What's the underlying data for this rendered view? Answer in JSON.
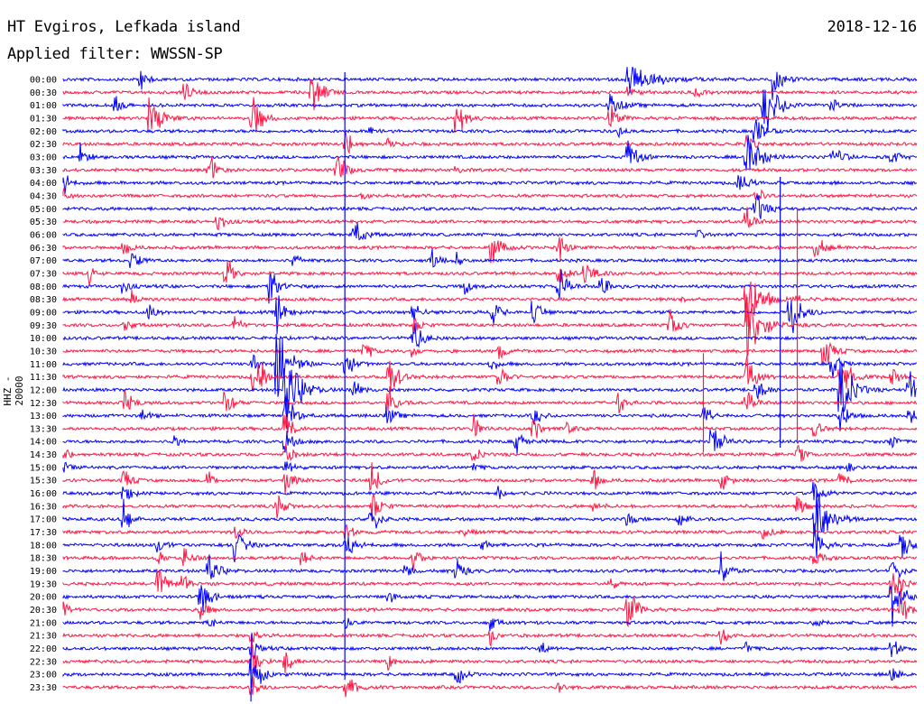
{
  "header": {
    "station": "HT Evgiros, Lefkada island",
    "date": "2018-12-16",
    "filter": "Applied filter: WWSSN-SP"
  },
  "chart_data": {
    "type": "line",
    "title": "HT Evgiros, Lefkada island",
    "ylabel": "HHZ - 20000",
    "colors": [
      "#0000ff",
      "#ff1744"
    ],
    "row_minutes": 30,
    "grid": false,
    "time_labels": [
      "00:00",
      "00:30",
      "01:00",
      "01:30",
      "02:00",
      "02:30",
      "03:00",
      "03:30",
      "04:00",
      "04:30",
      "05:00",
      "05:30",
      "06:00",
      "06:30",
      "07:00",
      "07:30",
      "08:00",
      "08:30",
      "09:00",
      "09:30",
      "10:00",
      "10:30",
      "11:00",
      "11:30",
      "12:00",
      "12:30",
      "13:00",
      "13:30",
      "14:00",
      "14:30",
      "15:00",
      "15:30",
      "16:00",
      "16:30",
      "17:00",
      "17:30",
      "18:00",
      "18:30",
      "19:00",
      "19:30",
      "20:00",
      "20:30",
      "21:00",
      "21:30",
      "22:00",
      "22:30",
      "23:00",
      "23:30"
    ],
    "events": [
      [
        0,
        0.09,
        18,
        18,
        6
      ],
      [
        0,
        0.66,
        22,
        14,
        24
      ],
      [
        0,
        0.83,
        30,
        14,
        8
      ],
      [
        1,
        0.29,
        35,
        18,
        9
      ],
      [
        1,
        0.14,
        17,
        9,
        7
      ],
      [
        1,
        0.66,
        8,
        9,
        9
      ],
      [
        1,
        0.74,
        12,
        9,
        5
      ],
      [
        2,
        0.06,
        15,
        8,
        6
      ],
      [
        2,
        0.64,
        16,
        16,
        10
      ],
      [
        2,
        0.82,
        45,
        20,
        12
      ],
      [
        2,
        0.9,
        14,
        10,
        6
      ],
      [
        3,
        0.1,
        40,
        18,
        10
      ],
      [
        3,
        0.22,
        45,
        20,
        8
      ],
      [
        3,
        0.46,
        40,
        16,
        7
      ],
      [
        3,
        0.64,
        22,
        10,
        7
      ],
      [
        4,
        0.36,
        10,
        8,
        4
      ],
      [
        4,
        0.65,
        10,
        8,
        4
      ],
      [
        4,
        0.81,
        22,
        18,
        9
      ],
      [
        5,
        0.33,
        30,
        18,
        6
      ],
      [
        5,
        0.38,
        10,
        8,
        4
      ],
      [
        5,
        0.8,
        12,
        9,
        6
      ],
      [
        6,
        0.02,
        18,
        12,
        6
      ],
      [
        6,
        0.66,
        30,
        18,
        8
      ],
      [
        6,
        0.8,
        48,
        20,
        10
      ],
      [
        6,
        0.9,
        25,
        14,
        7
      ],
      [
        6,
        0.97,
        12,
        8,
        7
      ],
      [
        7,
        0.17,
        30,
        14,
        6
      ],
      [
        7,
        0.32,
        28,
        16,
        8
      ],
      [
        7,
        0.46,
        10,
        8,
        4
      ],
      [
        8,
        0.0,
        25,
        10,
        5
      ],
      [
        8,
        0.79,
        18,
        14,
        8
      ],
      [
        9,
        0.0,
        18,
        10,
        5
      ],
      [
        9,
        0.35,
        10,
        8,
        4
      ],
      [
        9,
        0.81,
        20,
        12,
        6
      ],
      [
        10,
        0.81,
        28,
        18,
        8
      ],
      [
        11,
        0.18,
        18,
        10,
        6
      ],
      [
        11,
        0.8,
        22,
        14,
        7
      ],
      [
        12,
        0.34,
        25,
        14,
        8
      ],
      [
        12,
        0.74,
        12,
        10,
        6
      ],
      [
        13,
        0.07,
        15,
        10,
        6
      ],
      [
        13,
        0.5,
        38,
        18,
        7
      ],
      [
        13,
        0.58,
        24,
        14,
        6
      ],
      [
        13,
        0.88,
        22,
        14,
        8
      ],
      [
        14,
        0.08,
        20,
        12,
        6
      ],
      [
        14,
        0.27,
        12,
        10,
        5
      ],
      [
        14,
        0.43,
        18,
        12,
        6
      ],
      [
        14,
        0.46,
        12,
        10,
        5
      ],
      [
        15,
        0.03,
        15,
        10,
        4
      ],
      [
        15,
        0.19,
        30,
        14,
        6
      ],
      [
        15,
        0.58,
        22,
        12,
        6
      ],
      [
        15,
        0.61,
        18,
        10,
        8
      ],
      [
        16,
        0.07,
        15,
        10,
        5
      ],
      [
        16,
        0.24,
        40,
        16,
        7
      ],
      [
        16,
        0.47,
        15,
        12,
        6
      ],
      [
        16,
        0.58,
        28,
        16,
        8
      ],
      [
        16,
        0.63,
        18,
        12,
        7
      ],
      [
        17,
        0.08,
        14,
        10,
        5
      ],
      [
        17,
        0.72,
        10,
        8,
        4
      ],
      [
        17,
        0.8,
        60,
        40,
        12
      ],
      [
        17,
        0.86,
        10,
        8,
        4
      ],
      [
        18,
        0.1,
        18,
        10,
        5
      ],
      [
        18,
        0.25,
        30,
        14,
        7
      ],
      [
        18,
        0.41,
        20,
        12,
        6
      ],
      [
        18,
        0.5,
        28,
        16,
        6
      ],
      [
        18,
        0.55,
        25,
        14,
        6
      ],
      [
        18,
        0.85,
        45,
        20,
        10
      ],
      [
        19,
        0.07,
        14,
        10,
        6
      ],
      [
        19,
        0.2,
        14,
        12,
        6
      ],
      [
        19,
        0.41,
        14,
        10,
        6
      ],
      [
        19,
        0.71,
        25,
        14,
        7
      ],
      [
        19,
        0.8,
        60,
        20,
        12
      ],
      [
        20,
        0.41,
        22,
        14,
        8
      ],
      [
        21,
        0.35,
        24,
        14,
        6
      ],
      [
        21,
        0.41,
        12,
        8,
        4
      ],
      [
        21,
        0.51,
        20,
        12,
        5
      ],
      [
        21,
        0.89,
        28,
        14,
        8
      ],
      [
        22,
        0.22,
        22,
        14,
        6
      ],
      [
        22,
        0.25,
        70,
        30,
        10
      ],
      [
        22,
        0.33,
        28,
        14,
        6
      ],
      [
        22,
        0.5,
        16,
        10,
        5
      ],
      [
        22,
        0.9,
        22,
        12,
        6
      ],
      [
        23,
        0.22,
        30,
        16,
        6
      ],
      [
        23,
        0.23,
        24,
        12,
        6
      ],
      [
        23,
        0.38,
        40,
        20,
        8
      ],
      [
        23,
        0.51,
        22,
        14,
        6
      ],
      [
        23,
        0.8,
        30,
        14,
        8
      ],
      [
        23,
        0.91,
        45,
        22,
        8
      ],
      [
        23,
        0.97,
        16,
        10,
        6
      ],
      [
        24,
        0.26,
        70,
        40,
        12
      ],
      [
        24,
        0.34,
        18,
        10,
        6
      ],
      [
        24,
        0.81,
        25,
        12,
        7
      ],
      [
        24,
        0.91,
        55,
        40,
        10
      ],
      [
        24,
        0.99,
        30,
        18,
        8
      ],
      [
        25,
        0.07,
        22,
        14,
        8
      ],
      [
        25,
        0.19,
        25,
        16,
        6
      ],
      [
        25,
        0.38,
        30,
        16,
        6
      ],
      [
        25,
        0.65,
        18,
        12,
        6
      ],
      [
        25,
        0.8,
        20,
        14,
        8
      ],
      [
        26,
        0.09,
        14,
        10,
        6
      ],
      [
        26,
        0.26,
        35,
        18,
        8
      ],
      [
        26,
        0.38,
        20,
        12,
        6
      ],
      [
        26,
        0.55,
        20,
        12,
        6
      ],
      [
        26,
        0.75,
        20,
        12,
        6
      ],
      [
        26,
        0.91,
        28,
        14,
        7
      ],
      [
        26,
        0.99,
        20,
        12,
        6
      ],
      [
        27,
        0.26,
        30,
        18,
        6
      ],
      [
        27,
        0.48,
        22,
        12,
        6
      ],
      [
        27,
        0.55,
        22,
        12,
        6
      ],
      [
        27,
        0.59,
        12,
        8,
        5
      ],
      [
        27,
        0.88,
        16,
        10,
        6
      ],
      [
        28,
        0.13,
        12,
        8,
        4
      ],
      [
        28,
        0.26,
        22,
        14,
        6
      ],
      [
        28,
        0.53,
        18,
        12,
        6
      ],
      [
        28,
        0.76,
        30,
        16,
        8
      ],
      [
        28,
        0.97,
        12,
        8,
        6
      ],
      [
        29,
        0.0,
        18,
        10,
        5
      ],
      [
        29,
        0.26,
        18,
        12,
        6
      ],
      [
        29,
        0.48,
        15,
        10,
        5
      ],
      [
        29,
        0.86,
        15,
        12,
        6
      ],
      [
        30,
        0.0,
        12,
        10,
        5
      ],
      [
        30,
        0.26,
        14,
        10,
        6
      ],
      [
        30,
        0.48,
        12,
        10,
        5
      ],
      [
        30,
        0.92,
        10,
        8,
        5
      ],
      [
        31,
        0.07,
        22,
        14,
        6
      ],
      [
        31,
        0.17,
        15,
        10,
        5
      ],
      [
        31,
        0.26,
        25,
        16,
        6
      ],
      [
        31,
        0.36,
        30,
        18,
        7
      ],
      [
        31,
        0.62,
        20,
        12,
        6
      ],
      [
        31,
        0.77,
        18,
        12,
        6
      ],
      [
        31,
        0.91,
        14,
        10,
        6
      ],
      [
        32,
        0.07,
        22,
        14,
        6
      ],
      [
        32,
        0.51,
        14,
        10,
        5
      ],
      [
        32,
        0.88,
        25,
        14,
        7
      ],
      [
        33,
        0.25,
        25,
        16,
        6
      ],
      [
        33,
        0.36,
        30,
        18,
        7
      ],
      [
        33,
        0.62,
        16,
        10,
        5
      ],
      [
        33,
        0.86,
        20,
        12,
        6
      ],
      [
        34,
        0.07,
        30,
        16,
        6
      ],
      [
        34,
        0.36,
        25,
        14,
        7
      ],
      [
        34,
        0.66,
        14,
        10,
        5
      ],
      [
        34,
        0.72,
        18,
        12,
        6
      ],
      [
        34,
        0.88,
        65,
        35,
        12
      ],
      [
        35,
        0.2,
        18,
        12,
        6
      ],
      [
        35,
        0.33,
        18,
        12,
        6
      ],
      [
        35,
        0.47,
        14,
        10,
        5
      ],
      [
        35,
        0.82,
        14,
        10,
        6
      ],
      [
        36,
        0.11,
        18,
        12,
        6
      ],
      [
        36,
        0.2,
        30,
        16,
        8
      ],
      [
        36,
        0.33,
        25,
        16,
        8
      ],
      [
        36,
        0.49,
        14,
        10,
        5
      ],
      [
        36,
        0.88,
        35,
        20,
        7
      ],
      [
        36,
        0.98,
        35,
        18,
        8
      ],
      [
        37,
        0.11,
        14,
        10,
        5
      ],
      [
        37,
        0.14,
        18,
        12,
        6
      ],
      [
        37,
        0.28,
        14,
        10,
        5
      ],
      [
        37,
        0.41,
        18,
        12,
        6
      ],
      [
        37,
        0.88,
        18,
        12,
        6
      ],
      [
        38,
        0.17,
        30,
        16,
        8
      ],
      [
        38,
        0.4,
        14,
        10,
        5
      ],
      [
        38,
        0.46,
        20,
        12,
        6
      ],
      [
        38,
        0.77,
        25,
        14,
        7
      ],
      [
        38,
        0.97,
        25,
        14,
        7
      ],
      [
        39,
        0.11,
        35,
        16,
        7
      ],
      [
        39,
        0.14,
        15,
        10,
        5
      ],
      [
        39,
        0.64,
        12,
        8,
        5
      ],
      [
        39,
        0.97,
        30,
        18,
        8
      ],
      [
        40,
        0.16,
        35,
        18,
        8
      ],
      [
        40,
        0.38,
        14,
        10,
        5
      ],
      [
        40,
        0.97,
        40,
        20,
        9
      ],
      [
        41,
        0.0,
        18,
        10,
        5
      ],
      [
        41,
        0.16,
        18,
        12,
        6
      ],
      [
        41,
        0.66,
        40,
        20,
        8
      ],
      [
        41,
        0.98,
        35,
        18,
        7
      ],
      [
        42,
        0.17,
        12,
        8,
        5
      ],
      [
        42,
        0.33,
        12,
        8,
        5
      ],
      [
        42,
        0.5,
        14,
        10,
        5
      ],
      [
        42,
        0.88,
        14,
        10,
        6
      ],
      [
        43,
        0.22,
        14,
        10,
        5
      ],
      [
        43,
        0.5,
        14,
        10,
        5
      ],
      [
        43,
        0.77,
        14,
        10,
        6
      ],
      [
        44,
        0.22,
        20,
        12,
        6
      ],
      [
        44,
        0.56,
        12,
        8,
        5
      ],
      [
        44,
        0.8,
        12,
        8,
        5
      ],
      [
        44,
        0.97,
        20,
        12,
        6
      ],
      [
        45,
        0.22,
        30,
        18,
        7
      ],
      [
        45,
        0.26,
        18,
        12,
        6
      ],
      [
        45,
        0.38,
        12,
        8,
        5
      ],
      [
        46,
        0.22,
        40,
        20,
        8
      ],
      [
        46,
        0.46,
        18,
        12,
        6
      ],
      [
        46,
        0.97,
        14,
        10,
        6
      ],
      [
        47,
        0.22,
        24,
        14,
        6
      ],
      [
        47,
        0.33,
        30,
        16,
        7
      ],
      [
        47,
        0.58,
        14,
        10,
        5
      ]
    ],
    "spikes": [
      [
        22,
        0.33,
        700
      ],
      [
        46,
        0.22,
        60
      ],
      [
        25,
        0.75,
        110
      ],
      [
        18,
        0.84,
        300
      ],
      [
        19,
        0.86,
        260
      ]
    ]
  }
}
